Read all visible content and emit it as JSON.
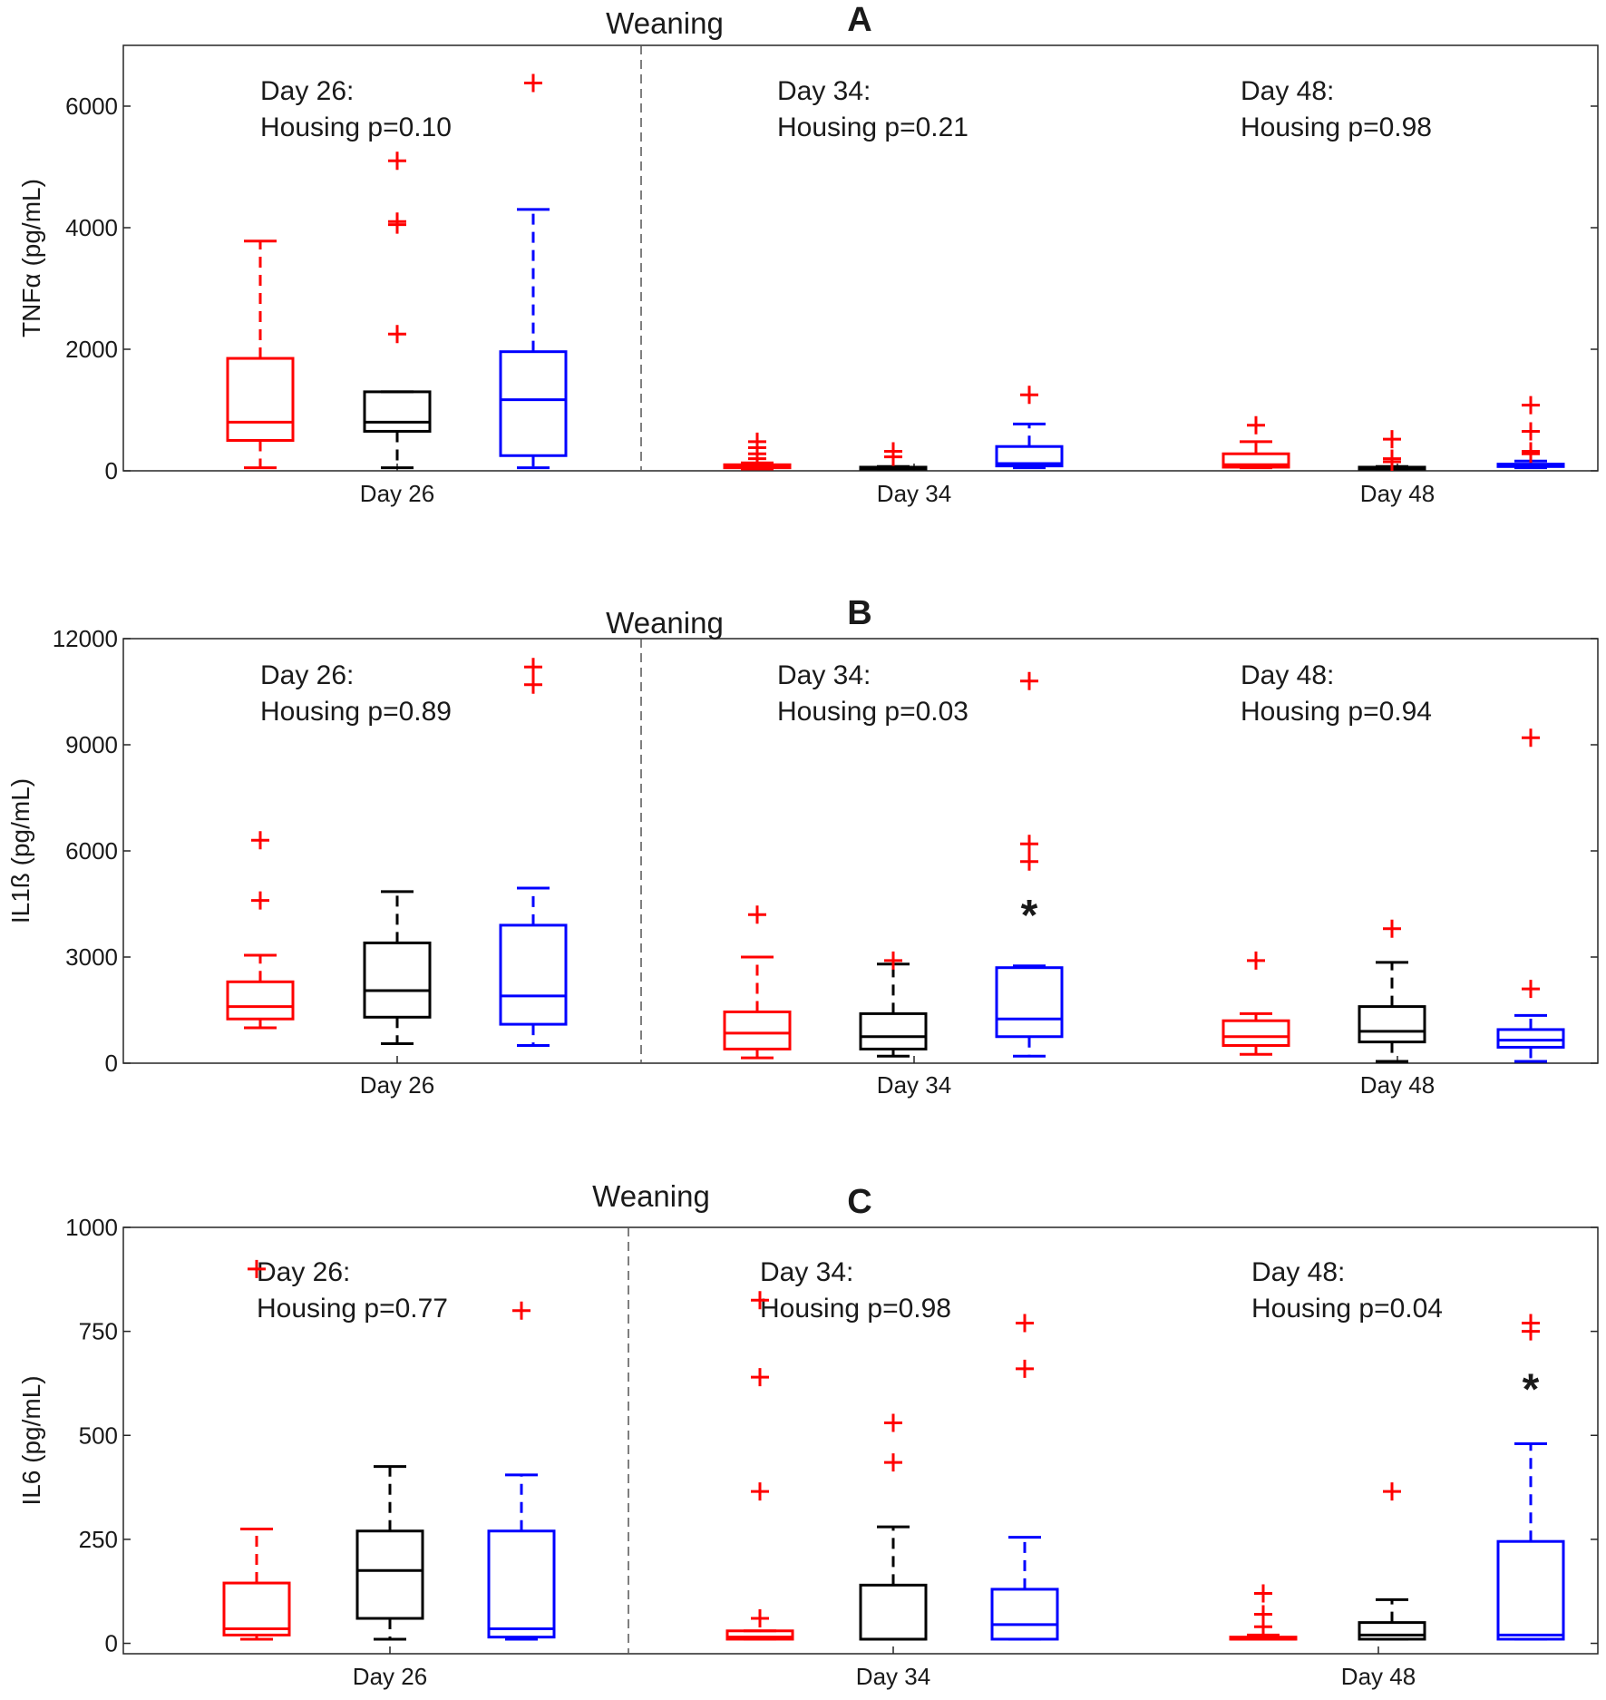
{
  "colors": {
    "red": "#ff0000",
    "black": "#000000",
    "blue": "#0000ff",
    "divider": "#555555"
  },
  "chart_data": [
    {
      "type": "box",
      "panel_letter": "A",
      "event_label": "Weaning",
      "ylabel": "TNFα (pg/mL)",
      "ylim": [
        0,
        7000
      ],
      "yticks": [
        0,
        2000,
        4000,
        6000
      ],
      "ytick_labels": [
        "0",
        "2000",
        "4000",
        "6000"
      ],
      "groups": [
        {
          "xlabel": "Day 26",
          "note_line1": "Day 26:",
          "note_line2": "Housing p=0.10",
          "significant": false,
          "boxes": [
            {
              "color": "red",
              "whisker_low": 50,
              "q1": 500,
              "median": 800,
              "q3": 1850,
              "whisker_high": 3780,
              "outliers": []
            },
            {
              "color": "black",
              "whisker_low": 50,
              "q1": 650,
              "median": 800,
              "q3": 1300,
              "whisker_high": 1300,
              "outliers": [
                2250,
                4050,
                4100,
                5100
              ]
            },
            {
              "color": "blue",
              "whisker_low": 50,
              "q1": 250,
              "median": 1170,
              "q3": 1960,
              "whisker_high": 4300,
              "outliers": [
                6380
              ]
            }
          ]
        },
        {
          "xlabel": "Day 34",
          "note_line1": "Day 34:",
          "note_line2": "Housing p=0.21",
          "significant": false,
          "boxes": [
            {
              "color": "red",
              "whisker_low": 30,
              "q1": 50,
              "median": 80,
              "q3": 100,
              "whisker_high": 130,
              "outliers": [
                200,
                280,
                380,
                480
              ]
            },
            {
              "color": "black",
              "whisker_low": 30,
              "q1": 40,
              "median": 50,
              "q3": 60,
              "whisker_high": 70,
              "outliers": [
                230,
                320
              ]
            },
            {
              "color": "blue",
              "whisker_low": 50,
              "q1": 80,
              "median": 120,
              "q3": 400,
              "whisker_high": 770,
              "outliers": [
                1250
              ]
            }
          ]
        },
        {
          "xlabel": "Day 48",
          "note_line1": "Day 48:",
          "note_line2": "Housing p=0.98",
          "significant": false,
          "boxes": [
            {
              "color": "red",
              "whisker_low": 50,
              "q1": 60,
              "median": 100,
              "q3": 280,
              "whisker_high": 480,
              "outliers": [
                750
              ]
            },
            {
              "color": "black",
              "whisker_low": 30,
              "q1": 40,
              "median": 50,
              "q3": 60,
              "whisker_high": 70,
              "outliers": [
                150,
                200,
                520
              ]
            },
            {
              "color": "blue",
              "whisker_low": 50,
              "q1": 70,
              "median": 90,
              "q3": 110,
              "whisker_high": 160,
              "outliers": [
                280,
                320,
                650,
                1080
              ]
            }
          ]
        }
      ]
    },
    {
      "type": "box",
      "panel_letter": "B",
      "event_label": "Weaning",
      "ylabel": "IL1ß (pg/mL)",
      "ylim": [
        0,
        12000
      ],
      "yticks": [
        0,
        3000,
        6000,
        9000,
        12000
      ],
      "ytick_labels": [
        "0",
        "3000",
        "6000",
        "9000",
        "12000"
      ],
      "groups": [
        {
          "xlabel": "Day 26",
          "note_line1": "Day 26:",
          "note_line2": "Housing p=0.89",
          "significant": false,
          "boxes": [
            {
              "color": "red",
              "whisker_low": 1000,
              "q1": 1250,
              "median": 1600,
              "q3": 2300,
              "whisker_high": 3050,
              "outliers": [
                4600,
                6300
              ]
            },
            {
              "color": "black",
              "whisker_low": 550,
              "q1": 1300,
              "median": 2050,
              "q3": 3400,
              "whisker_high": 4850,
              "outliers": []
            },
            {
              "color": "blue",
              "whisker_low": 500,
              "q1": 1100,
              "median": 1900,
              "q3": 3900,
              "whisker_high": 4950,
              "outliers": [
                10700,
                11200
              ]
            }
          ]
        },
        {
          "xlabel": "Day 34",
          "note_line1": "Day 34:",
          "note_line2": "Housing p=0.03",
          "significant": true,
          "boxes": [
            {
              "color": "red",
              "whisker_low": 150,
              "q1": 400,
              "median": 850,
              "q3": 1450,
              "whisker_high": 3000,
              "outliers": [
                4200
              ]
            },
            {
              "color": "black",
              "whisker_low": 200,
              "q1": 400,
              "median": 750,
              "q3": 1400,
              "whisker_high": 2800,
              "outliers": [
                2900
              ]
            },
            {
              "color": "blue",
              "whisker_low": 200,
              "q1": 750,
              "median": 1250,
              "q3": 2700,
              "whisker_high": 2750,
              "outliers": [
                5700,
                6200,
                10800
              ]
            }
          ]
        },
        {
          "xlabel": "Day 48",
          "note_line1": "Day 48:",
          "note_line2": "Housing p=0.94",
          "significant": false,
          "boxes": [
            {
              "color": "red",
              "whisker_low": 250,
              "q1": 500,
              "median": 750,
              "q3": 1200,
              "whisker_high": 1400,
              "outliers": [
                2900
              ]
            },
            {
              "color": "black",
              "whisker_low": 50,
              "q1": 600,
              "median": 900,
              "q3": 1600,
              "whisker_high": 2850,
              "outliers": [
                3800
              ]
            },
            {
              "color": "blue",
              "whisker_low": 50,
              "q1": 450,
              "median": 650,
              "q3": 950,
              "whisker_high": 1350,
              "outliers": [
                2100,
                9200
              ]
            }
          ]
        }
      ]
    },
    {
      "type": "box",
      "panel_letter": "C",
      "event_label": "Weaning",
      "ylabel": "IL6 (pg/mL)",
      "ylim": [
        -25,
        1000
      ],
      "yticks": [
        0,
        250,
        500,
        750,
        1000
      ],
      "ytick_labels": [
        "0",
        "250",
        "500",
        "750",
        "1000"
      ],
      "groups": [
        {
          "xlabel": "Day 26",
          "note_line1": "Day 26:",
          "note_line2": "Housing p=0.77",
          "significant": false,
          "boxes": [
            {
              "color": "red",
              "whisker_low": 10,
              "q1": 20,
              "median": 35,
              "q3": 145,
              "whisker_high": 275,
              "outliers": [
                900
              ]
            },
            {
              "color": "black",
              "whisker_low": 10,
              "q1": 60,
              "median": 175,
              "q3": 270,
              "whisker_high": 425,
              "outliers": []
            },
            {
              "color": "blue",
              "whisker_low": 10,
              "q1": 15,
              "median": 35,
              "q3": 270,
              "whisker_high": 405,
              "outliers": [
                800
              ]
            }
          ]
        },
        {
          "xlabel": "Day 34",
          "note_line1": "Day 34:",
          "note_line2": "Housing p=0.98",
          "significant": false,
          "boxes": [
            {
              "color": "red",
              "whisker_low": 10,
              "q1": 10,
              "median": 15,
              "q3": 30,
              "whisker_high": 30,
              "outliers": [
                60,
                365,
                640,
                825
              ]
            },
            {
              "color": "black",
              "whisker_low": 10,
              "q1": 10,
              "median": 10,
              "q3": 140,
              "whisker_high": 280,
              "outliers": [
                435,
                530
              ]
            },
            {
              "color": "blue",
              "whisker_low": 10,
              "q1": 10,
              "median": 45,
              "q3": 130,
              "whisker_high": 255,
              "outliers": [
                660,
                770
              ]
            }
          ]
        },
        {
          "xlabel": "Day 48",
          "note_line1": "Day 48:",
          "note_line2": "Housing p=0.04",
          "significant": true,
          "boxes": [
            {
              "color": "red",
              "whisker_low": 10,
              "q1": 10,
              "median": 10,
              "q3": 15,
              "whisker_high": 20,
              "outliers": [
                40,
                70,
                120
              ]
            },
            {
              "color": "black",
              "whisker_low": 10,
              "q1": 10,
              "median": 20,
              "q3": 50,
              "whisker_high": 105,
              "outliers": [
                365
              ]
            },
            {
              "color": "blue",
              "whisker_low": 10,
              "q1": 10,
              "median": 20,
              "q3": 245,
              "whisker_high": 480,
              "outliers": [
                750,
                770
              ]
            }
          ]
        }
      ]
    }
  ]
}
